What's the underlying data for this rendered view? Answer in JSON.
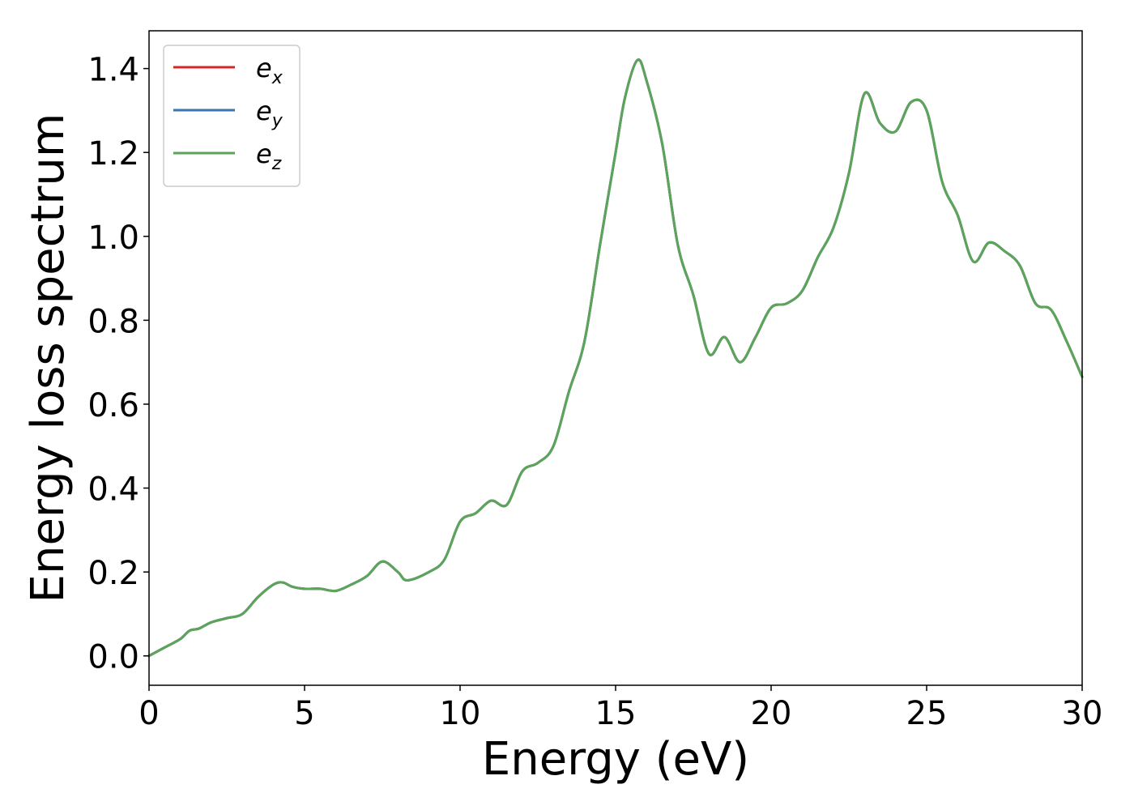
{
  "chart_data": {
    "type": "line",
    "xlabel": "Energy (eV)",
    "ylabel": "Energy loss spectrum",
    "xlim": [
      0,
      30
    ],
    "ylim": [
      -0.07,
      1.49
    ],
    "xticks": [
      0,
      5,
      10,
      15,
      20,
      25,
      30
    ],
    "xtick_labels": [
      "0",
      "5",
      "10",
      "15",
      "20",
      "25",
      "30"
    ],
    "yticks": [
      0.0,
      0.2,
      0.4,
      0.6,
      0.8,
      1.0,
      1.2,
      1.4
    ],
    "ytick_labels": [
      "0.0",
      "0.2",
      "0.4",
      "0.6",
      "0.8",
      "1.0",
      "1.2",
      "1.4"
    ],
    "grid": false,
    "legend_position": "top-left",
    "x": [
      0,
      0.5,
      1.0,
      1.3,
      1.6,
      2.0,
      2.5,
      3.0,
      3.5,
      4.0,
      4.3,
      4.6,
      5.0,
      5.5,
      6.0,
      6.5,
      7.0,
      7.5,
      8.0,
      8.3,
      9.0,
      9.5,
      10.0,
      10.5,
      11.0,
      11.5,
      12.0,
      12.5,
      13.0,
      13.5,
      14.0,
      14.5,
      15.0,
      15.3,
      15.7,
      16.0,
      16.5,
      17.0,
      17.5,
      18.0,
      18.5,
      19.0,
      19.5,
      20.0,
      20.5,
      21.0,
      21.5,
      22.0,
      22.5,
      23.0,
      23.5,
      24.0,
      24.5,
      25.0,
      25.5,
      26.0,
      26.5,
      27.0,
      27.5,
      28.0,
      28.5,
      29.0,
      29.5,
      30.0
    ],
    "series": [
      {
        "name": "e_x",
        "label_main": "e",
        "label_sub": "x",
        "color": "#d62728",
        "values": [
          0.0,
          0.02,
          0.04,
          0.06,
          0.065,
          0.08,
          0.09,
          0.1,
          0.14,
          0.17,
          0.175,
          0.165,
          0.16,
          0.16,
          0.155,
          0.17,
          0.19,
          0.225,
          0.2,
          0.18,
          0.2,
          0.23,
          0.32,
          0.34,
          0.37,
          0.36,
          0.44,
          0.46,
          0.5,
          0.63,
          0.75,
          0.98,
          1.2,
          1.33,
          1.42,
          1.37,
          1.22,
          0.98,
          0.86,
          0.72,
          0.76,
          0.7,
          0.76,
          0.83,
          0.84,
          0.87,
          0.95,
          1.02,
          1.15,
          1.34,
          1.27,
          1.25,
          1.32,
          1.3,
          1.13,
          1.05,
          0.94,
          0.985,
          0.965,
          0.93,
          0.84,
          0.825,
          0.75,
          0.665
        ]
      },
      {
        "name": "e_y",
        "label_main": "e",
        "label_sub": "y",
        "color": "#3b75af",
        "values": [
          0.0,
          0.02,
          0.04,
          0.06,
          0.065,
          0.08,
          0.09,
          0.1,
          0.14,
          0.17,
          0.175,
          0.165,
          0.16,
          0.16,
          0.155,
          0.17,
          0.19,
          0.225,
          0.2,
          0.18,
          0.2,
          0.23,
          0.32,
          0.34,
          0.37,
          0.36,
          0.44,
          0.46,
          0.5,
          0.63,
          0.75,
          0.98,
          1.2,
          1.33,
          1.42,
          1.37,
          1.22,
          0.98,
          0.86,
          0.72,
          0.76,
          0.7,
          0.76,
          0.83,
          0.84,
          0.87,
          0.95,
          1.02,
          1.15,
          1.34,
          1.27,
          1.25,
          1.32,
          1.3,
          1.13,
          1.05,
          0.94,
          0.985,
          0.965,
          0.93,
          0.84,
          0.825,
          0.75,
          0.665
        ]
      },
      {
        "name": "e_z",
        "label_main": "e",
        "label_sub": "z",
        "color": "#5aa55a",
        "values": [
          0.0,
          0.02,
          0.04,
          0.06,
          0.065,
          0.08,
          0.09,
          0.1,
          0.14,
          0.17,
          0.175,
          0.165,
          0.16,
          0.16,
          0.155,
          0.17,
          0.19,
          0.225,
          0.2,
          0.18,
          0.2,
          0.23,
          0.32,
          0.34,
          0.37,
          0.36,
          0.44,
          0.46,
          0.5,
          0.63,
          0.75,
          0.98,
          1.2,
          1.33,
          1.42,
          1.37,
          1.22,
          0.98,
          0.86,
          0.72,
          0.76,
          0.7,
          0.76,
          0.83,
          0.84,
          0.87,
          0.95,
          1.02,
          1.15,
          1.34,
          1.27,
          1.25,
          1.32,
          1.3,
          1.13,
          1.05,
          0.94,
          0.985,
          0.965,
          0.93,
          0.84,
          0.825,
          0.75,
          0.665
        ]
      }
    ]
  }
}
